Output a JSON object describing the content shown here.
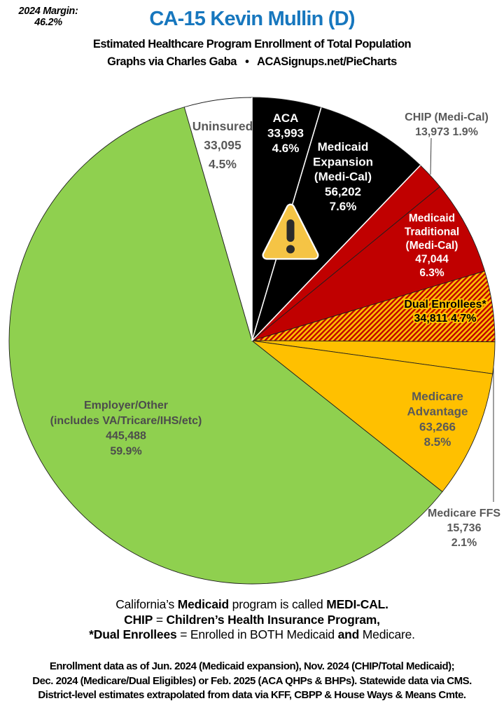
{
  "margin_note": {
    "title": "2024 Margin:",
    "value": "46.2%"
  },
  "header": {
    "title": "CA-15 Kevin Mullin (D)",
    "title_color": "#1777BE",
    "subtitle": "Estimated Healthcare Program Enrollment of Total Population",
    "byline": "Graphs via Charles Gaba   •   ACASignups.net/PieCharts"
  },
  "chart_data": {
    "type": "pie",
    "title": "Estimated Healthcare Program Enrollment of Total Population",
    "direction": "clockwise",
    "start_angle_deg": 0,
    "hatch": {
      "base": "#FFC000",
      "stripe": "#C00000"
    },
    "slices": [
      {
        "id": "aca",
        "name": "ACA",
        "enrollment": 33993,
        "enrollment_label": "33,993",
        "pct": 4.6,
        "pct_label": "4.6%",
        "fill": "#000000",
        "label_color": "#FFFFFF",
        "label_lines": [
          "ACA",
          "33,993",
          "4.6%"
        ]
      },
      {
        "id": "medicaid-expansion",
        "name": "Medicaid Expansion (Medi-Cal)",
        "enrollment": 56202,
        "enrollment_label": "56,202",
        "pct": 7.6,
        "pct_label": "7.6%",
        "fill": "#000000",
        "label_color": "#FFFFFF",
        "label_lines": [
          "Medicaid",
          "Expansion",
          "(Medi-Cal)",
          "56,202",
          "7.6%"
        ]
      },
      {
        "id": "chip",
        "name": "CHIP (Medi-Cal)",
        "enrollment": 13973,
        "enrollment_label": "13,973",
        "pct": 1.9,
        "pct_label": "1.9%",
        "fill": "#C00000",
        "label_color": "#595959",
        "label_outside": true,
        "label_lines": [
          "CHIP (Medi-Cal)",
          "13,973 1.9%"
        ]
      },
      {
        "id": "medicaid-traditional",
        "name": "Medicaid Traditional (Medi-Cal)",
        "enrollment": 47044,
        "enrollment_label": "47,044",
        "pct": 6.3,
        "pct_label": "6.3%",
        "fill": "#C00000",
        "label_color": "#FFFFFF",
        "label_lines": [
          "Medicaid",
          "Traditional",
          "(Medi-Cal)",
          "47,044",
          "6.3%"
        ]
      },
      {
        "id": "dual-enrollees",
        "name": "Dual Enrollees*",
        "enrollment": 34811,
        "enrollment_label": "34,811",
        "pct": 4.7,
        "pct_label": "4.7%",
        "fill": "hatch",
        "label_color": "#000000",
        "label_lines": [
          "Dual Enrollees*",
          "34,811 4.7%"
        ]
      },
      {
        "id": "medicare-ffs",
        "name": "Medicare FFS",
        "enrollment": 15736,
        "enrollment_label": "15,736",
        "pct": 2.1,
        "pct_label": "2.1%",
        "fill": "#FFC000",
        "label_color": "#595959",
        "label_outside": true,
        "label_lines": [
          "Medicare FFS",
          "15,736",
          "2.1%"
        ]
      },
      {
        "id": "medicare-advantage",
        "name": "Medicare Advantage",
        "enrollment": 63266,
        "enrollment_label": "63,266",
        "pct": 8.5,
        "pct_label": "8.5%",
        "fill": "#FFC000",
        "label_color": "#595959",
        "label_lines": [
          "Medicare",
          "Advantage",
          "63,266",
          "8.5%"
        ]
      },
      {
        "id": "employer-other",
        "name": "Employer/Other (includes VA/Tricare/IHS/etc)",
        "enrollment": 445488,
        "enrollment_label": "445,488",
        "pct": 59.9,
        "pct_label": "59.9%",
        "fill": "#8FD04F",
        "label_color": "#4C4C4C",
        "label_lines": [
          "Employer/Other",
          "(includes VA/Tricare/IHS/etc)",
          "445,488",
          "59.9%"
        ]
      },
      {
        "id": "uninsured",
        "name": "Uninsured",
        "enrollment": 33095,
        "enrollment_label": "33,095",
        "pct": 4.5,
        "pct_label": "4.5%",
        "fill": "#FFFFFF",
        "label_color": "#595959",
        "label_lines": [
          "Uninsured",
          "33,095",
          "4.5%"
        ]
      }
    ],
    "warning_icon": {
      "shown": true,
      "fill": "#F5C445",
      "mark_color": "#2B2B2B"
    }
  },
  "legend_notes": [
    [
      {
        "t": "California’s ",
        "b": false
      },
      {
        "t": "Medicaid",
        "b": true
      },
      {
        "t": " program is called ",
        "b": false
      },
      {
        "t": "MEDI-CAL.",
        "b": true
      }
    ],
    [
      {
        "t": "CHIP",
        "b": true
      },
      {
        "t": " = ",
        "b": false
      },
      {
        "t": "Children’s Health Insurance Program,",
        "b": true
      }
    ],
    [
      {
        "t": "*Dual Enrollees",
        "b": true
      },
      {
        "t": " = Enrolled in BOTH Medicaid ",
        "b": false
      },
      {
        "t": "and",
        "b": true
      },
      {
        "t": " Medicare.",
        "b": false
      }
    ]
  ],
  "source_notes": [
    "Enrollment data as of Jun. 2024 (Medicaid expansion), Nov. 2024 (CHIP/Total Medicaid);",
    "Dec. 2024 (Medicare/Dual Eligibles) or Feb. 2025 (ACA QHPs & BHPs). Statewide data via CMS.",
    "District-level estimates extrapolated from data via KFF, CBPP & House Ways & Means Cmte."
  ]
}
